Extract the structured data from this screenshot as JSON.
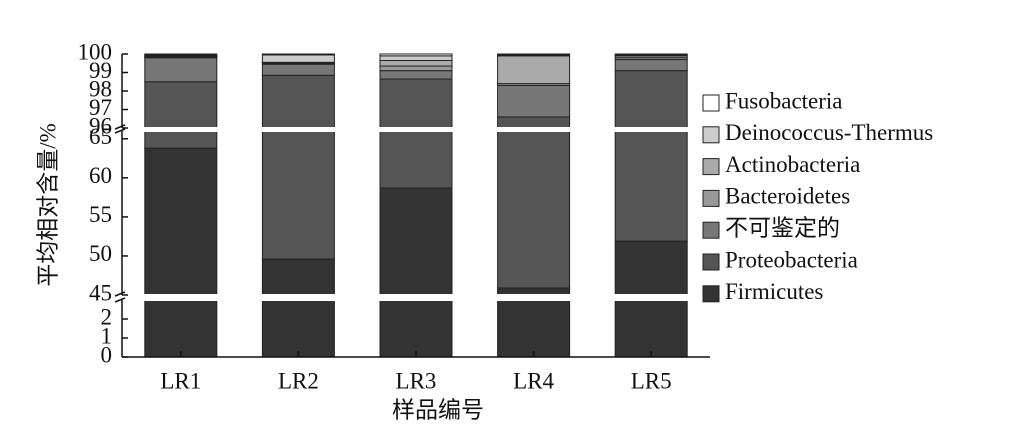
{
  "chart_data": {
    "type": "stacked_bar",
    "y_label": "平均相对含量/%",
    "x_label": "样品编号",
    "categories": [
      "LR1",
      "LR2",
      "LR3",
      "LR4",
      "LR5"
    ],
    "series": [
      {
        "name": "Firmicutes",
        "color": "#333333",
        "values": [
          63.8,
          49.6,
          58.7,
          45.9,
          51.9
        ]
      },
      {
        "name": "Proteobacteria",
        "color": "#555555",
        "values": [
          34.7,
          49.25,
          39.95,
          50.7,
          47.2
        ]
      },
      {
        "name": "不可鉴定的",
        "color": "#777777",
        "values": [
          1.3,
          0.6,
          0.45,
          1.7,
          0.6
        ]
      },
      {
        "name": "Bacteroidetes",
        "color": "#999999",
        "values": [
          0.05,
          0.05,
          0.25,
          0.1,
          0.1
        ]
      },
      {
        "name": "Actinobacteria",
        "color": "#aaaaaa",
        "values": [
          0.05,
          0.05,
          0.3,
          1.5,
          0.1
        ]
      },
      {
        "name": "Deinococcus-Thermus",
        "color": "#cccccc",
        "values": [
          0.05,
          0.4,
          0.25,
          0.05,
          0.05
        ]
      },
      {
        "name": "Fusobacteria",
        "color": "#ffffff",
        "values": [
          0.05,
          0.05,
          0.1,
          0.05,
          0.05
        ]
      }
    ],
    "ylim": [
      0,
      100
    ],
    "y_segments": [
      [
        0,
        3
      ],
      [
        45,
        66
      ],
      [
        96,
        100
      ]
    ],
    "yticks": [
      0,
      1,
      2,
      45,
      50,
      55,
      60,
      65,
      96,
      97,
      98,
      99,
      100
    ],
    "legend": "right"
  }
}
